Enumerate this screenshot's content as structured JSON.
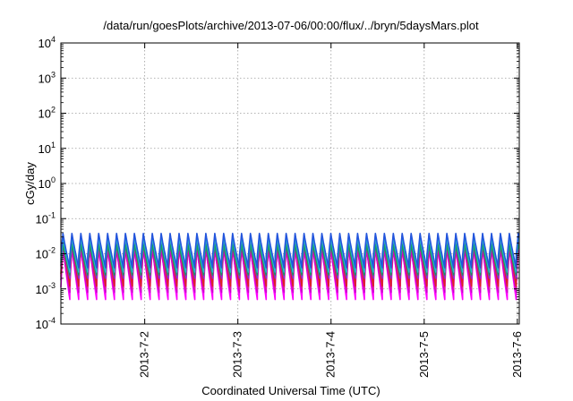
{
  "chart_data": {
    "type": "line",
    "title": "/data/run/goesPlots/archive/2013-07-06/00:00/flux/../bryn/5daysMars.plot",
    "xlabel": "Coordinated Universal Time (UTC)",
    "ylabel": "cGy/day",
    "yscale": "log",
    "ylim": [
      0.0001,
      10000
    ],
    "y_tick_labels": [
      {
        "base": "10",
        "exp": "-4"
      },
      {
        "base": "10",
        "exp": "-3"
      },
      {
        "base": "10",
        "exp": "-2"
      },
      {
        "base": "10",
        "exp": "-1"
      },
      {
        "base": "10",
        "exp": "0"
      },
      {
        "base": "10",
        "exp": "1"
      },
      {
        "base": "10",
        "exp": "2"
      },
      {
        "base": "10",
        "exp": "3"
      },
      {
        "base": "10",
        "exp": "4"
      }
    ],
    "xlim": [
      "2013-07-01T02:24",
      "2013-07-06T00:30"
    ],
    "x_tick_labels": [
      "2013-7-2",
      "2013-7-3",
      "2013-7-4",
      "2013-7-5",
      "2013-7-6"
    ],
    "grid": true,
    "legend": "none",
    "waveform": {
      "period_hours": 2.3,
      "start": "2013-07-01T02:24",
      "end": "2013-07-06T00:30",
      "note_shape": "sawtooth: sharp rise at each cycle start, decay toward a minimum"
    },
    "series": [
      {
        "color": "#ff00ff",
        "peak": 0.03,
        "trough": 0.0005
      },
      {
        "color": "#cc00cc",
        "peak": 0.022,
        "trough": 0.0008
      },
      {
        "color": "#e01ba0",
        "peak": 0.04,
        "trough": 0.001
      },
      {
        "color": "#dd2222",
        "peak": 0.06,
        "trough": 0.0012
      },
      {
        "color": "#8833cc",
        "peak": 0.035,
        "trough": 0.002
      },
      {
        "color": "#1a9a5a",
        "peak": 0.025,
        "trough": 0.0025
      },
      {
        "color": "#22bbcc",
        "peak": 0.045,
        "trough": 0.003
      },
      {
        "color": "#2255dd",
        "peak": 0.055,
        "trough": 0.004
      }
    ]
  }
}
